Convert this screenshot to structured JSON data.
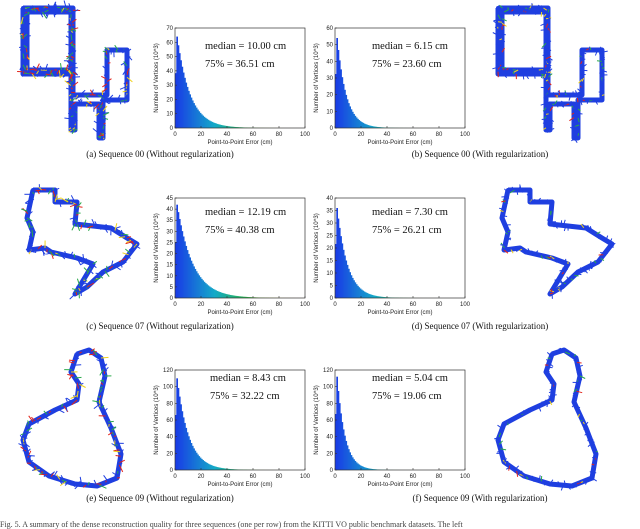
{
  "chart_data": [
    {
      "type": "area",
      "title": "",
      "xlabel": "Point-to-Point Error (cm)",
      "ylabel": "Number of Vertices (10^3)",
      "x_ticks": [
        0,
        20,
        40,
        60,
        80,
        100
      ],
      "y_ticks": [
        0,
        10,
        20,
        30,
        40,
        50,
        60,
        70
      ],
      "xlim": [
        0,
        100
      ],
      "ylim": [
        0,
        70
      ],
      "peak": 64,
      "decay": 10.0,
      "annotations": [
        "median = 10.00 cm",
        "75% = 36.51 cm"
      ],
      "caption": "(a)  Sequence 00 (Without regularization)"
    },
    {
      "type": "area",
      "title": "",
      "xlabel": "Point-to-Point Error (cm)",
      "ylabel": "Number of Vertices (10^3)",
      "x_ticks": [
        0,
        20,
        40,
        60,
        80,
        100
      ],
      "y_ticks": [
        0,
        10,
        20,
        30,
        40,
        50,
        60
      ],
      "xlim": [
        0,
        100
      ],
      "ylim": [
        0,
        60
      ],
      "peak": 54,
      "decay": 7.0,
      "annotations": [
        "median = 6.15 cm",
        "75% = 23.60 cm"
      ],
      "caption": "(b)  Sequence 00 (With regularization)"
    },
    {
      "type": "area",
      "title": "",
      "xlabel": "Point-to-Point Error (cm)",
      "ylabel": "Number of Vertices (10^3)",
      "x_ticks": [
        0,
        20,
        40,
        60,
        80,
        100
      ],
      "y_ticks": [
        0,
        5,
        10,
        15,
        20,
        25,
        30,
        35,
        40,
        45
      ],
      "xlim": [
        0,
        100
      ],
      "ylim": [
        0,
        45
      ],
      "peak": 42,
      "decay": 12.0,
      "annotations": [
        "median = 12.19 cm",
        "75% = 40.38 cm"
      ],
      "caption": "(c)  Sequence 07 (Without regularization)"
    },
    {
      "type": "area",
      "title": "",
      "xlabel": "Point-to-Point Error (cm)",
      "ylabel": "Number of Vertices (10^3)",
      "x_ticks": [
        0,
        20,
        40,
        60,
        80,
        100
      ],
      "y_ticks": [
        0,
        5,
        10,
        15,
        20,
        25,
        30,
        35,
        40
      ],
      "xlim": [
        0,
        100
      ],
      "ylim": [
        0,
        40
      ],
      "peak": 36,
      "decay": 8.0,
      "annotations": [
        "median = 7.30 cm",
        "75% = 26.21 cm"
      ],
      "caption": "(d)  Sequence 07 (With regularization)"
    },
    {
      "type": "area",
      "title": "",
      "xlabel": "Point-to-Point Error (cm)",
      "ylabel": "Number of Vertices (10^3)",
      "x_ticks": [
        0,
        20,
        40,
        60,
        80,
        100
      ],
      "y_ticks": [
        0,
        20,
        40,
        60,
        80,
        100,
        120
      ],
      "xlim": [
        0,
        100
      ],
      "ylim": [
        0,
        120
      ],
      "peak": 110,
      "decay": 9.0,
      "annotations": [
        "median = 8.43 cm",
        "75% = 32.22 cm"
      ],
      "caption": "(e)  Sequence 09 (Without regularization)"
    },
    {
      "type": "area",
      "title": "",
      "xlabel": "Point-to-Point Error (cm)",
      "ylabel": "Number of Vertices (10^3)",
      "x_ticks": [
        0,
        20,
        40,
        60,
        80,
        100
      ],
      "y_ticks": [
        0,
        20,
        40,
        60,
        80,
        100,
        120
      ],
      "xlim": [
        0,
        100
      ],
      "ylim": [
        0,
        120
      ],
      "peak": 112,
      "decay": 6.0,
      "annotations": [
        "median = 5.04 cm",
        "75% = 19.06 cm"
      ],
      "caption": "(f)  Sequence 09 (With regularization)"
    }
  ],
  "trajectories": [
    {
      "shape": "seq00",
      "side": "left",
      "noise": "high"
    },
    {
      "shape": "seq00",
      "side": "right",
      "noise": "low"
    },
    {
      "shape": "seq07",
      "side": "left",
      "noise": "high"
    },
    {
      "shape": "seq07",
      "side": "right",
      "noise": "low"
    },
    {
      "shape": "seq09",
      "side": "left",
      "noise": "high"
    },
    {
      "shape": "seq09",
      "side": "right",
      "noise": "low"
    }
  ],
  "colors": {
    "blue": "#1f3fe0",
    "green": "#2aa84a",
    "red": "#e2231a",
    "yellow": "#f0d21c"
  },
  "footer": "Fig. 5.  A summary of the dense reconstruction quality for three sequences (one per row) from the KITTI VO public benchmark datasets. The left"
}
